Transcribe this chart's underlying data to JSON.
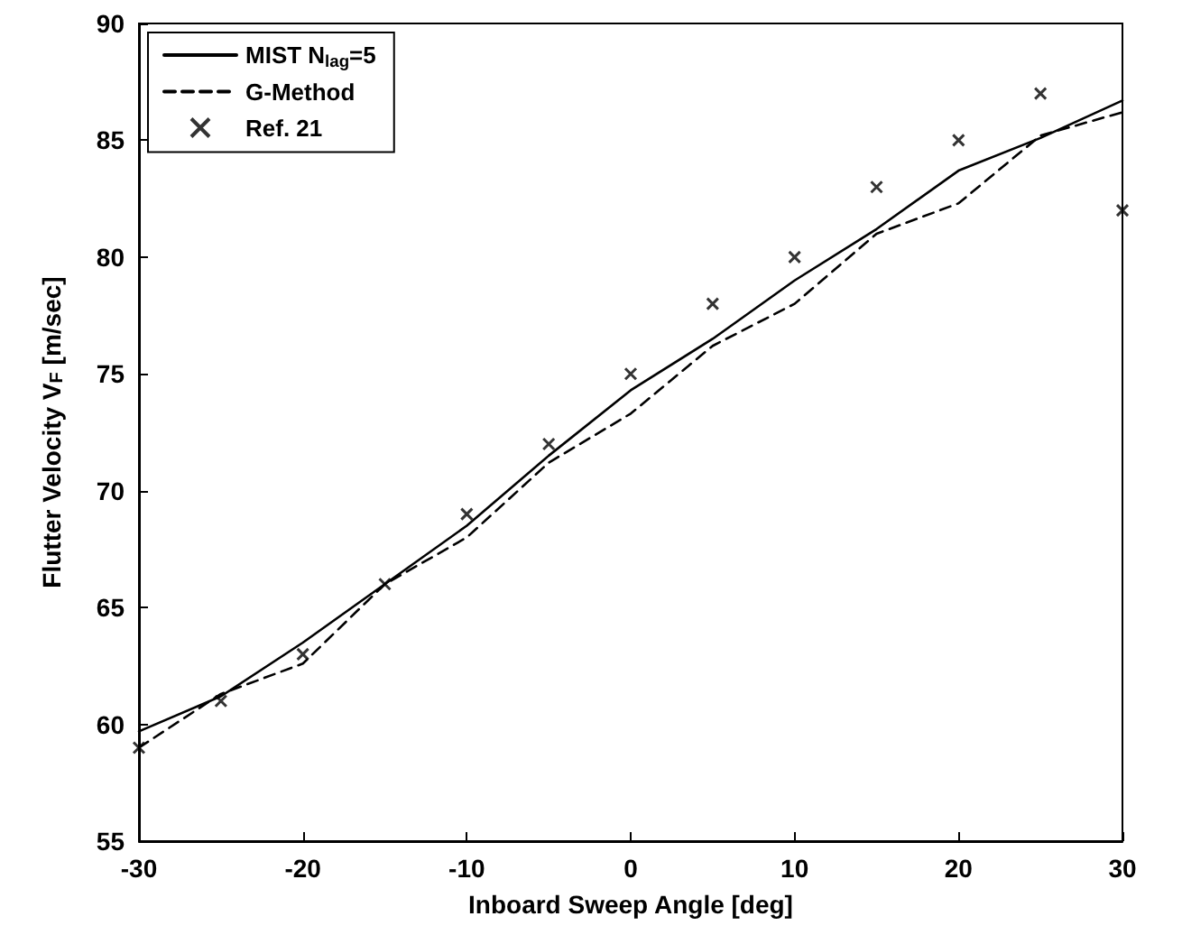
{
  "chart_data": {
    "type": "line",
    "xlabel": "Inboard Sweep Angle [deg]",
    "ylabel": "Flutter Velocity V$_{F}$ [m/sec]",
    "x": [
      -30,
      -25,
      -20,
      -15,
      -10,
      -5,
      0,
      5,
      10,
      15,
      20,
      25,
      30
    ],
    "series": [
      {
        "name": "MIST N$_{lag}$=5",
        "color": "#000000",
        "line_style": "solid",
        "marker": "none",
        "values": [
          59.7,
          61.2,
          63.5,
          66,
          68.5,
          71.5,
          74.3,
          76.5,
          79,
          81.2,
          83.7,
          85.1,
          86.7
        ]
      },
      {
        "name": "G-Method",
        "color": "#000000",
        "line_style": "dashed",
        "marker": "none",
        "values": [
          59,
          61.3,
          62.6,
          66,
          68,
          71.2,
          73.3,
          76.2,
          78,
          81,
          82.3,
          85.2,
          86.2
        ]
      },
      {
        "name": "Ref. 21",
        "type": "scatter",
        "color": "#000000",
        "marker": "cross",
        "values": [
          59,
          61,
          63,
          66,
          69,
          72,
          75,
          78,
          80,
          83,
          85,
          87,
          82
        ]
      }
    ],
    "xlim": [
      -30,
      30
    ],
    "xticks": [
      -30,
      -20,
      -10,
      0,
      10,
      20,
      30
    ],
    "ylim": [
      55,
      90
    ],
    "yticks": [
      55,
      60,
      65,
      70,
      75,
      80,
      85,
      90
    ],
    "grid": false,
    "legend": "top left"
  }
}
